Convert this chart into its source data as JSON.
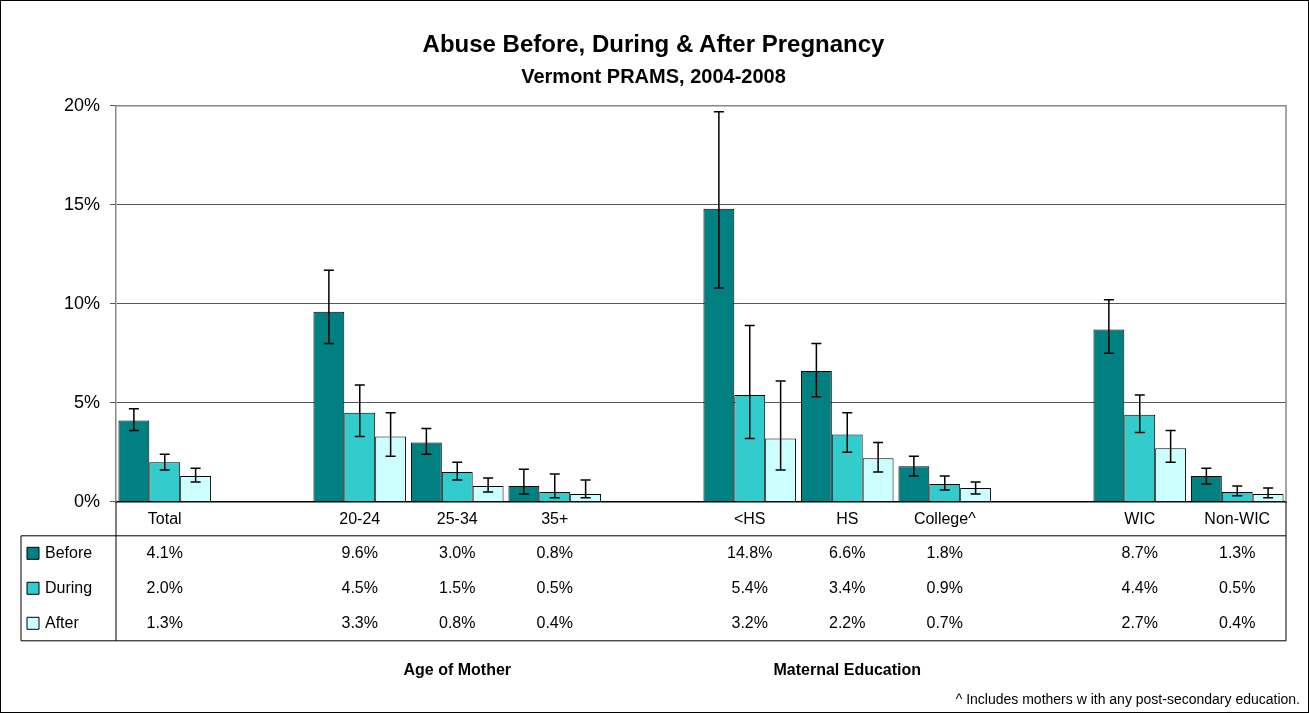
{
  "chart_data": {
    "type": "bar",
    "title": "Abuse Before, During & After Pregnancy",
    "subtitle": "Vermont PRAMS, 2004-2008",
    "categories": [
      "Total",
      null,
      "20-24",
      "25-34",
      "35+",
      null,
      "<HS",
      "HS",
      "College^",
      null,
      "WIC",
      "Non-WIC"
    ],
    "series": [
      {
        "name": "Before",
        "color": "#008080",
        "values": [
          4.1,
          null,
          9.6,
          3.0,
          0.8,
          null,
          14.8,
          6.6,
          1.8,
          null,
          8.7,
          1.3
        ],
        "value_labels": [
          "4.1%",
          null,
          "9.6%",
          "3.0%",
          "0.8%",
          null,
          "14.8%",
          "6.6%",
          "1.8%",
          null,
          "8.7%",
          "1.3%"
        ],
        "errors": [
          [
            3.6,
            4.7
          ],
          null,
          [
            8.0,
            11.7
          ],
          [
            2.4,
            3.7
          ],
          [
            0.4,
            1.65
          ],
          null,
          [
            10.8,
            19.7
          ],
          [
            5.3,
            8.0
          ],
          [
            1.3,
            2.3
          ],
          null,
          [
            7.5,
            10.2
          ],
          [
            0.9,
            1.7
          ]
        ]
      },
      {
        "name": "During",
        "color": "#33cccc",
        "values": [
          2.0,
          null,
          4.5,
          1.5,
          0.5,
          null,
          5.4,
          3.4,
          0.9,
          null,
          4.4,
          0.5
        ],
        "value_labels": [
          "2.0%",
          null,
          "4.5%",
          "1.5%",
          "0.5%",
          null,
          "5.4%",
          "3.4%",
          "0.9%",
          null,
          "4.4%",
          "0.5%"
        ],
        "errors": [
          [
            1.6,
            2.4
          ],
          null,
          [
            3.3,
            5.9
          ],
          [
            1.1,
            2.0
          ],
          [
            0.2,
            1.4
          ],
          null,
          [
            3.2,
            8.9
          ],
          [
            2.5,
            4.5
          ],
          [
            0.6,
            1.3
          ],
          null,
          [
            3.5,
            5.4
          ],
          [
            0.3,
            0.8
          ]
        ]
      },
      {
        "name": "After",
        "color": "#ccffff",
        "values": [
          1.3,
          null,
          3.3,
          0.8,
          0.4,
          null,
          3.2,
          2.2,
          0.7,
          null,
          2.7,
          0.4
        ],
        "value_labels": [
          "1.3%",
          null,
          "3.3%",
          "0.8%",
          "0.4%",
          null,
          "3.2%",
          "2.2%",
          "0.7%",
          null,
          "2.7%",
          "0.4%"
        ],
        "errors": [
          [
            1.0,
            1.7
          ],
          null,
          [
            2.3,
            4.5
          ],
          [
            0.5,
            1.2
          ],
          [
            0.2,
            1.1
          ],
          null,
          [
            1.6,
            6.1
          ],
          [
            1.5,
            3.0
          ],
          [
            0.4,
            1.0
          ],
          null,
          [
            2.0,
            3.6
          ],
          [
            0.2,
            0.7
          ]
        ]
      }
    ],
    "ylim": [
      0,
      20
    ],
    "yticks": [
      {
        "value": 0,
        "label": "0%"
      },
      {
        "value": 5,
        "label": "5%"
      },
      {
        "value": 10,
        "label": "10%"
      },
      {
        "value": 15,
        "label": "15%"
      },
      {
        "value": 20,
        "label": "20%"
      }
    ],
    "grid": "y",
    "legend": "bottom left",
    "annotations": [
      "Age of Mother",
      "Maternal Education",
      "^ Includes mothers w ith any post-secondary education."
    ]
  }
}
